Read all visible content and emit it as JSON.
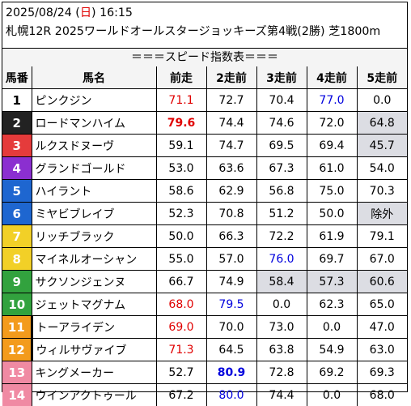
{
  "header": {
    "date_prefix": "2025/08/24 (",
    "day": "日",
    "time_suffix": ") 16:15",
    "race_info": "札幌12R 2025ワールドオールスタージョッキーズ第4戦(2勝) 芝1800m"
  },
  "speed_title": "＝＝＝スピード指数表＝＝＝",
  "columns": [
    "馬番",
    "馬名",
    "前走",
    "2走前",
    "3走前",
    "4走前",
    "5走前"
  ],
  "rows": [
    {
      "num": "1",
      "name": "ピンクジン",
      "v": [
        {
          "t": "71.1",
          "c": "red"
        },
        {
          "t": "72.7"
        },
        {
          "t": "70.4"
        },
        {
          "t": "77.0",
          "c": "blue"
        },
        {
          "t": "0.0"
        }
      ]
    },
    {
      "num": "2",
      "name": "ロードマンハイム",
      "v": [
        {
          "t": "79.6",
          "c": "red",
          "b": true
        },
        {
          "t": "74.4"
        },
        {
          "t": "74.6"
        },
        {
          "t": "72.0"
        },
        {
          "t": "64.8",
          "g": true
        }
      ]
    },
    {
      "num": "3",
      "name": "ルクスドヌーヴ",
      "v": [
        {
          "t": "59.1"
        },
        {
          "t": "74.7"
        },
        {
          "t": "69.5"
        },
        {
          "t": "69.4"
        },
        {
          "t": "45.7",
          "g": true
        }
      ]
    },
    {
      "num": "4",
      "name": "グランドゴールド",
      "v": [
        {
          "t": "53.0"
        },
        {
          "t": "63.6"
        },
        {
          "t": "67.3"
        },
        {
          "t": "61.0"
        },
        {
          "t": "54.0"
        }
      ]
    },
    {
      "num": "5",
      "name": "ハイラント",
      "v": [
        {
          "t": "58.6"
        },
        {
          "t": "62.9"
        },
        {
          "t": "56.8"
        },
        {
          "t": "75.0"
        },
        {
          "t": "70.3"
        }
      ]
    },
    {
      "num": "6",
      "name": "ミヤビブレイブ",
      "v": [
        {
          "t": "52.3"
        },
        {
          "t": "70.8"
        },
        {
          "t": "51.2"
        },
        {
          "t": "50.0"
        },
        {
          "t": "除外",
          "g": true
        }
      ]
    },
    {
      "num": "7",
      "name": "リッチブラック",
      "v": [
        {
          "t": "50.0"
        },
        {
          "t": "66.3"
        },
        {
          "t": "72.2"
        },
        {
          "t": "61.9"
        },
        {
          "t": "79.1"
        }
      ]
    },
    {
      "num": "8",
      "name": "マイネルオーシャン",
      "v": [
        {
          "t": "55.0"
        },
        {
          "t": "57.0"
        },
        {
          "t": "76.0",
          "c": "blue"
        },
        {
          "t": "69.7"
        },
        {
          "t": "67.0"
        }
      ]
    },
    {
      "num": "9",
      "name": "サクソンジェンヌ",
      "v": [
        {
          "t": "66.7"
        },
        {
          "t": "74.9"
        },
        {
          "t": "58.4",
          "g": true
        },
        {
          "t": "57.3",
          "g": true
        },
        {
          "t": "60.6",
          "g": true
        }
      ]
    },
    {
      "num": "10",
      "name": "ジェットマグナム",
      "v": [
        {
          "t": "68.0",
          "c": "red"
        },
        {
          "t": "79.5",
          "c": "blue"
        },
        {
          "t": "0.0"
        },
        {
          "t": "62.3"
        },
        {
          "t": "65.0"
        }
      ]
    },
    {
      "num": "11",
      "name": "トーアライデン",
      "v": [
        {
          "t": "69.0",
          "c": "red"
        },
        {
          "t": "70.0"
        },
        {
          "t": "73.0"
        },
        {
          "t": "0.0"
        },
        {
          "t": "47.0"
        }
      ]
    },
    {
      "num": "12",
      "name": "ウィルサヴァイブ",
      "v": [
        {
          "t": "71.3",
          "c": "red"
        },
        {
          "t": "64.5"
        },
        {
          "t": "63.8"
        },
        {
          "t": "54.9"
        },
        {
          "t": "63.0"
        }
      ]
    },
    {
      "num": "13",
      "name": "キングメーカー",
      "v": [
        {
          "t": "52.7"
        },
        {
          "t": "80.9",
          "c": "blue",
          "b": true
        },
        {
          "t": "72.8"
        },
        {
          "t": "69.2"
        },
        {
          "t": "69.3"
        }
      ]
    },
    {
      "num": "14",
      "name": "ウインアクトゥール",
      "v": [
        {
          "t": "67.2"
        },
        {
          "t": "80.0",
          "c": "blue"
        },
        {
          "t": "74.4"
        },
        {
          "t": "0.0"
        },
        {
          "t": "68.0"
        }
      ]
    }
  ],
  "frame_colors": {
    "1": "#ffffff",
    "2": "#222222",
    "3": "#e53b3b",
    "4": "#1e66d0",
    "5": "#f2d027",
    "6": "#32a23e",
    "7": "#f39b1c",
    "8": "#f08aa3"
  }
}
